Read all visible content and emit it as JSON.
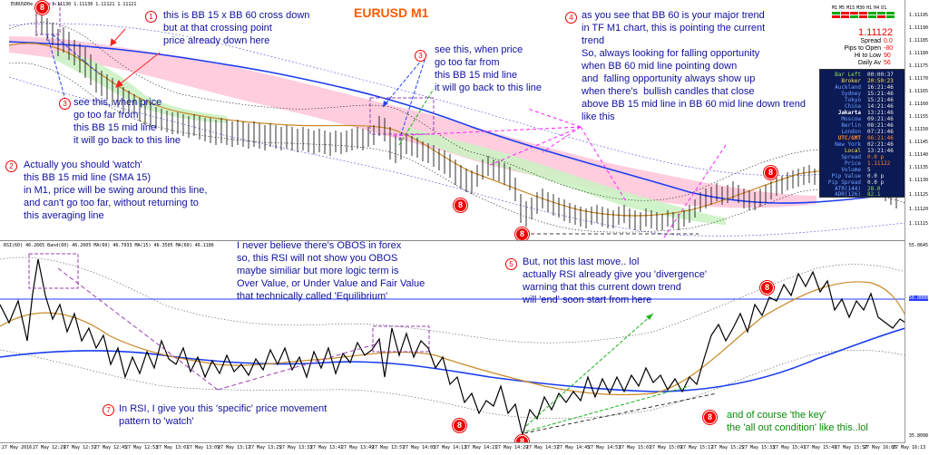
{
  "chart": {
    "title": "EURUSD M1",
    "symbol_line": "EURUSD0e",
    "ohlc": "1.11130 1.11130 1.11121 1.11121",
    "rsi_header": "RSI(60) 46.2665 Band(60) 46.2605 MA(60) 46.7933 MA(15) 46.3505 MA(60) 46.1186"
  },
  "price_axis": [
    "1.11195",
    "1.11190",
    "1.11185",
    "1.11180",
    "1.11175",
    "1.11170",
    "1.11165",
    "1.11160",
    "1.11155",
    "1.11150",
    "1.11145",
    "1.11140",
    "1.11135",
    "1.11130",
    "1.11125",
    "1.11120",
    "1.11115"
  ],
  "rsi_axis": [
    "55.0645",
    "50.0000",
    "35.8098"
  ],
  "time_axis": [
    "27 May 2016",
    "27 May 12:29",
    "27 May 12:37",
    "27 May 12:45",
    "27 May 12:53",
    "27 May 13:01",
    "27 May 13:09",
    "27 May 13:17",
    "27 May 13:25",
    "27 May 13:33",
    "27 May 13:41",
    "27 May 13:49",
    "27 May 13:57",
    "27 May 14:05",
    "27 May 14:13",
    "27 May 14:21",
    "27 May 14:29",
    "27 May 14:37",
    "27 May 14:45",
    "27 May 14:53",
    "27 May 15:01",
    "27 May 15:09",
    "27 May 15:17",
    "27 May 15:25",
    "27 May 15:33",
    "27 May 15:41",
    "27 May 15:49",
    "27 May 15:57",
    "27 May 16:05",
    "27 May 16:13"
  ],
  "timeframes": [
    "M1",
    "M5",
    "M15",
    "M30",
    "H1",
    "H4",
    "D1"
  ],
  "info": {
    "price": "1.11122",
    "rows": [
      {
        "label": "Spread",
        "value": "0.0"
      },
      {
        "label": "Pips to Open",
        "value": "-80"
      },
      {
        "label": "Hi to Low",
        "value": "90"
      },
      {
        "label": "Daily Av",
        "value": "56"
      }
    ]
  },
  "panel": {
    "rows": [
      {
        "label": "Bar Left",
        "value": "00:00:37"
      },
      {
        "label": "Broker",
        "value": "20:50:23"
      },
      {
        "label": "Auckland",
        "value": "16:21:46"
      },
      {
        "label": "Sydney",
        "value": "15:21:46"
      },
      {
        "label": "Tokyo",
        "value": "15:21:46"
      },
      {
        "label": "China",
        "value": "14:21:46"
      },
      {
        "label": "Jakarta",
        "value": "13:21:46"
      },
      {
        "label": "Moscow",
        "value": "09:21:46"
      },
      {
        "label": "Berlin",
        "value": "08:21:46"
      },
      {
        "label": "London",
        "value": "07:21:46"
      },
      {
        "label": "UTC/GMT",
        "value": "06:21:46"
      },
      {
        "label": "New York",
        "value": "02:21:46"
      },
      {
        "label": "Local",
        "value": "13:21:46"
      },
      {
        "label": "Spread",
        "value": "0.0 p"
      },
      {
        "label": "Price",
        "value": "1.11122"
      },
      {
        "label": "Volume",
        "value": "5"
      },
      {
        "label": "Pip Value",
        "value": "0.0 p"
      },
      {
        "label": "Pip Spread",
        "value": "0.0 p"
      },
      {
        "label": "ATR(144)",
        "value": "28.0"
      },
      {
        "label": "ADR(126)",
        "value": "82.1"
      }
    ]
  },
  "notes": {
    "n1": "this is BB 15 x BB 60 cross down\nbut at that crossing point\nprice already down here",
    "n2": "Actually you should 'watch'\nthis BB 15 mid line (SMA 15)\nin M1, price will be swing around this line,\nand can't go too far, without returning to\nthis averaging line",
    "n3a": "see this, when price\ngo too far from\nthis BB 15 mid line\nit will go back to this line",
    "n3b": "see this, when price\ngo too far from\nthis BB 15 mid line\nit will go back to this line",
    "n4": "as you see that BB 60 is your major trend\nin TF M1 chart, this is pointing the current\ntrend\nSo, always looking for falling opportunity\nwhen BB 60 mid line pointing down\nand  falling opportunity always show up\nwhen there's  bullish candles that close\nabove BB 15 mid line in BB 60 mid line down trend\nlike this",
    "n5": "But, not this last move.. lol\nactually RSI already give you 'divergence'\nwarning that this current down trend\nwill 'end' soon start from here",
    "n6": "About RSI\nI never believe there's OBOS in forex\nso, this RSI will not show you OBOS\nmaybe similiar but more logic term is\nOver Value, or Under Value and Fair Value\nthat technically called 'Equilibrium'",
    "n7": "In RSI, I give you this 'specific' price movement\npattern to 'watch'",
    "n8": "and of course 'the key'\nthe 'all out condition' like this..lol"
  },
  "markers": {
    "one": "1",
    "two": "2",
    "three": "3",
    "four": "4",
    "five": "5",
    "six": "6",
    "seven": "7",
    "eight": "8"
  },
  "colors": {
    "bb60_mid": "#1a3cf0",
    "bb15_mid": "#c88a2a",
    "cloud_pink": "#ffc4d8",
    "cloud_green": "#d6f5c9",
    "arrow_red": "#ff2020",
    "arrow_blue": "#2244ee",
    "arrow_magenta": "#ff20ff",
    "arrow_green": "#20b020",
    "box_purple": "#9a40b0"
  }
}
